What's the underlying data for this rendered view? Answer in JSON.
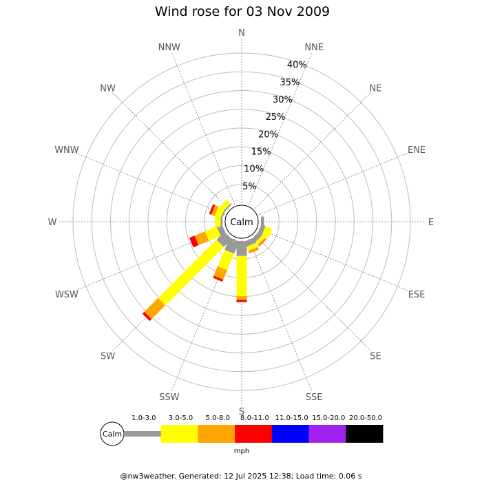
{
  "chart_data": {
    "type": "windrose",
    "title": "Wind rose for 03 Nov 2009",
    "directions": [
      "N",
      "NNE",
      "NE",
      "ENE",
      "E",
      "ESE",
      "SE",
      "SSE",
      "S",
      "SSW",
      "SW",
      "WSW",
      "W",
      "WNW",
      "NW",
      "NNW"
    ],
    "rlim": [
      0,
      40
    ],
    "radial_ticks": [
      5,
      10,
      15,
      20,
      25,
      30,
      35,
      40
    ],
    "radial_tick_labels": [
      "5%",
      "10%",
      "15%",
      "20%",
      "25%",
      "30%",
      "35%",
      "40%"
    ],
    "calm_label": "Calm",
    "speed_bins": [
      {
        "label": "1.0-3.0",
        "color": "#999999"
      },
      {
        "label": "3.0-5.0",
        "color": "#ffff00"
      },
      {
        "label": "5.0-8.0",
        "color": "#ffa500"
      },
      {
        "label": "8.0-11.0",
        "color": "#ff0000"
      },
      {
        "label": "11.0-15.0",
        "color": "#0000ff"
      },
      {
        "label": "15.0-20.0",
        "color": "#a020f0"
      },
      {
        "label": "20.0-50.0",
        "color": "#000000"
      }
    ],
    "units": "mph",
    "petals": [
      {
        "dir": "E",
        "stack": [
          [
            0,
            0.8
          ]
        ]
      },
      {
        "dir": "ESE",
        "stack": [
          [
            0,
            1.2
          ],
          [
            1,
            2.0
          ]
        ]
      },
      {
        "dir": "SE",
        "stack": [
          [
            0,
            1.3
          ],
          [
            1,
            0.9
          ],
          [
            2,
            0.5
          ],
          [
            3,
            0.1
          ]
        ]
      },
      {
        "dir": "SSE",
        "stack": [
          [
            0,
            1.5
          ],
          [
            1,
            1.2
          ],
          [
            2,
            0.6
          ],
          [
            3,
            0.1
          ]
        ]
      },
      {
        "dir": "S",
        "stack": [
          [
            0,
            4.0
          ],
          [
            1,
            10.7
          ],
          [
            2,
            1.0
          ],
          [
            3,
            0.6
          ]
        ]
      },
      {
        "dir": "SSW",
        "stack": [
          [
            0,
            3.5
          ],
          [
            1,
            4.8
          ],
          [
            2,
            2.7
          ],
          [
            3,
            0.6
          ]
        ]
      },
      {
        "dir": "SW",
        "stack": [
          [
            0,
            3.0
          ],
          [
            1,
            22.0
          ],
          [
            2,
            5.2
          ],
          [
            3,
            0.7
          ]
        ]
      },
      {
        "dir": "WSW",
        "stack": [
          [
            0,
            1.5
          ],
          [
            1,
            3.4
          ],
          [
            2,
            3.0
          ],
          [
            3,
            1.5
          ]
        ]
      },
      {
        "dir": "W",
        "stack": [
          [
            0,
            0.5
          ],
          [
            1,
            1.5
          ]
        ]
      },
      {
        "dir": "WNW",
        "stack": [
          [
            0,
            0.4
          ],
          [
            1,
            1.7
          ],
          [
            2,
            1.0
          ],
          [
            3,
            0.6
          ]
        ]
      },
      {
        "dir": "NW",
        "stack": [
          [
            0,
            0.4
          ],
          [
            1,
            1.4
          ]
        ]
      }
    ]
  },
  "footer": {
    "text": "@nw3weather. Generated: 12 Jul 2025 12:38; Load time: 0.06 s"
  }
}
